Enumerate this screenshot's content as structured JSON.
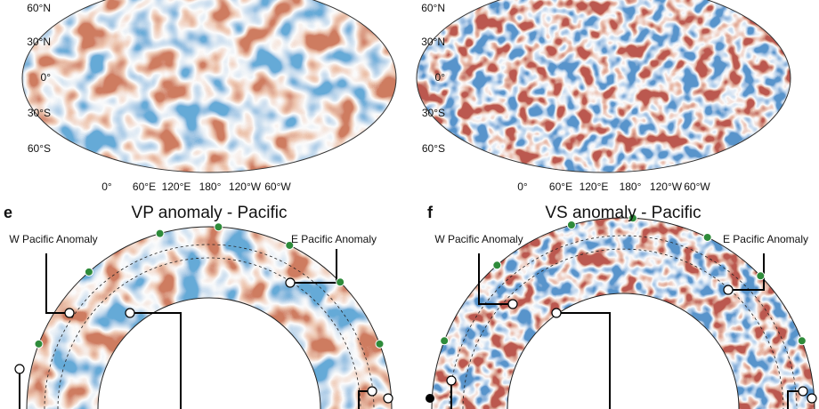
{
  "maps": [
    {
      "lat_labels": [
        "60°N",
        "30°N",
        "0°",
        "30°S",
        "60°S"
      ],
      "lon_labels": [
        "0°",
        "60°E",
        "120°E",
        "180°",
        "120°W",
        "60°W"
      ]
    },
    {
      "lat_labels": [
        "60°N",
        "30°N",
        "0°",
        "30°S",
        "60°S"
      ],
      "lon_labels": [
        "0°",
        "60°E",
        "120°E",
        "180°",
        "120°W",
        "60°W"
      ]
    }
  ],
  "sections": [
    {
      "letter": "e",
      "title": "VP anomaly - Pacific",
      "labels": [
        "W Pacific Anomaly",
        "E Pacific Anomaly"
      ]
    },
    {
      "letter": "f",
      "title": "VS anomaly - Pacific",
      "labels": [
        "W Pacific Anomaly",
        "E Pacific Anomaly"
      ]
    }
  ]
}
